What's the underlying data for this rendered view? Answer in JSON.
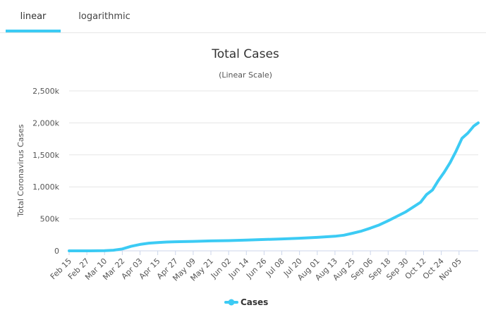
{
  "tabs": {
    "linear": "linear",
    "logarithmic": "logarithmic",
    "active": "linear"
  },
  "colors": {
    "series": "#3ccbf4",
    "grid": "#e6e6e6",
    "axis": "#ccd6eb"
  },
  "chart_data": {
    "type": "line",
    "title": "Total Cases",
    "subtitle": "(Linear Scale)",
    "xlabel": "",
    "ylabel": "Total Coronavirus Cases",
    "ylim": [
      0,
      2500000
    ],
    "yticks": [
      0,
      500000,
      1000000,
      1500000,
      2000000,
      2500000
    ],
    "ytick_labels": [
      "0",
      "500k",
      "1,000k",
      "1,500k",
      "2,000k",
      "2,500k"
    ],
    "grid": true,
    "legend": "bottom-center",
    "x_tick_labels": [
      "Feb 15",
      "Feb 27",
      "Mar 10",
      "Mar 22",
      "Apr 03",
      "Apr 15",
      "Apr 27",
      "May 09",
      "May 21",
      "Jun 02",
      "Jun 14",
      "Jun 26",
      "Jul 08",
      "Jul 20",
      "Aug 01",
      "Aug 13",
      "Aug 25",
      "Sep 06",
      "Sep 18",
      "Sep 30",
      "Oct 12",
      "Oct 24",
      "Nov 05"
    ],
    "x_days_per_tick": 12,
    "series": [
      {
        "name": "Cases",
        "x": [
          0,
          12,
          24,
          30,
          36,
          42,
          48,
          54,
          60,
          66,
          72,
          84,
          96,
          108,
          120,
          132,
          144,
          156,
          168,
          180,
          186,
          192,
          198,
          204,
          210,
          216,
          222,
          228,
          234,
          238,
          242,
          246,
          250,
          254,
          258,
          262,
          266,
          270,
          274,
          277
        ],
        "values": [
          0,
          0,
          3000,
          10000,
          30000,
          70000,
          100000,
          120000,
          130000,
          138000,
          142000,
          148000,
          155000,
          160000,
          168000,
          177000,
          186000,
          197000,
          210000,
          228000,
          245000,
          275000,
          310000,
          355000,
          405000,
          470000,
          540000,
          610000,
          700000,
          760000,
          880000,
          950000,
          1100000,
          1230000,
          1380000,
          1560000,
          1760000,
          1840000,
          1950000,
          2000000
        ]
      }
    ]
  }
}
